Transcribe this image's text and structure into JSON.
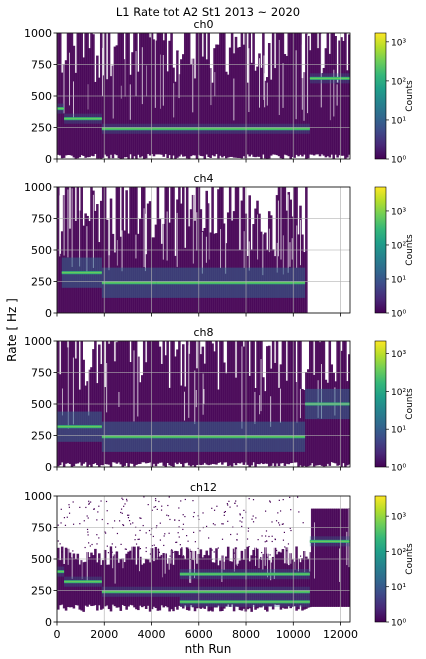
{
  "figure": {
    "title": "L1 Rate tot A2 St1 2013 ~ 2020",
    "ylabel": "Rate [ Hz ]",
    "xlabel": "nth Run"
  },
  "colormap": [
    "#440154",
    "#482878",
    "#3e4a89",
    "#31688e",
    "#26828e",
    "#1f9e89",
    "#35b779",
    "#6ece58",
    "#b5de2b",
    "#fde725"
  ],
  "chart_data": [
    {
      "type": "heatmap",
      "title": "ch0",
      "xlim": [
        0,
        12400
      ],
      "ylim": [
        0,
        1000
      ],
      "xticks": [
        0,
        2000,
        4000,
        6000,
        8000,
        10000,
        12000
      ],
      "yticks": [
        0,
        250,
        500,
        750,
        1000
      ],
      "x_ticklabels_shown": false,
      "grid": true,
      "colorbar": {
        "label": "Counts",
        "scale": "log",
        "ticks": [
          "10⁰",
          "10¹",
          "10²",
          "10³"
        ]
      },
      "bands": [
        {
          "x": [
            0,
            300
          ],
          "rate": 400
        },
        {
          "x": [
            300,
            1900
          ],
          "rate": 320
        },
        {
          "x": [
            1900,
            10700
          ],
          "rate": 240
        },
        {
          "x": [
            10700,
            12400
          ],
          "rate": 640
        }
      ]
    },
    {
      "type": "heatmap",
      "title": "ch4",
      "xlim": [
        0,
        12400
      ],
      "ylim": [
        0,
        1000
      ],
      "xticks": [
        0,
        2000,
        4000,
        6000,
        8000,
        10000,
        12000
      ],
      "yticks": [
        0,
        250,
        500,
        750,
        1000
      ],
      "x_ticklabels_shown": false,
      "grid": true,
      "colorbar": {
        "label": "Counts",
        "scale": "log",
        "ticks": [
          "10⁰",
          "10¹",
          "10²",
          "10³"
        ]
      },
      "bands": [
        {
          "x": [
            200,
            1900
          ],
          "rate": 320
        },
        {
          "x": [
            1900,
            4200
          ],
          "rate": 240
        },
        {
          "x": [
            4200,
            10500
          ],
          "rate": 240
        }
      ]
    },
    {
      "type": "heatmap",
      "title": "ch8",
      "xlim": [
        0,
        12400
      ],
      "ylim": [
        0,
        1000
      ],
      "xticks": [
        0,
        2000,
        4000,
        6000,
        8000,
        10000,
        12000
      ],
      "yticks": [
        0,
        250,
        500,
        750,
        1000
      ],
      "x_ticklabels_shown": false,
      "grid": true,
      "colorbar": {
        "label": "Counts",
        "scale": "log",
        "ticks": [
          "10⁰",
          "10¹",
          "10²",
          "10³"
        ]
      },
      "bands": [
        {
          "x": [
            0,
            1900
          ],
          "rate": 320
        },
        {
          "x": [
            1900,
            10500
          ],
          "rate": 240
        },
        {
          "x": [
            10500,
            12400
          ],
          "rate": 500
        }
      ]
    },
    {
      "type": "heatmap",
      "title": "ch12",
      "xlim": [
        0,
        12400
      ],
      "ylim": [
        0,
        1000
      ],
      "xticks": [
        0,
        2000,
        4000,
        6000,
        8000,
        10000,
        12000
      ],
      "yticks": [
        0,
        250,
        500,
        750,
        1000
      ],
      "x_ticklabels_shown": true,
      "grid": true,
      "colorbar": {
        "label": "Counts",
        "scale": "log",
        "ticks": [
          "10⁰",
          "10¹",
          "10²",
          "10³"
        ]
      },
      "bands": [
        {
          "x": [
            0,
            300
          ],
          "rate": 400
        },
        {
          "x": [
            300,
            1900
          ],
          "rate": 320
        },
        {
          "x": [
            1900,
            10700
          ],
          "rate": 240
        },
        {
          "x": [
            5200,
            10700
          ],
          "rate": 380
        },
        {
          "x": [
            5200,
            10700
          ],
          "rate": 160
        },
        {
          "x": [
            10700,
            12400
          ],
          "rate": 640
        }
      ]
    }
  ]
}
